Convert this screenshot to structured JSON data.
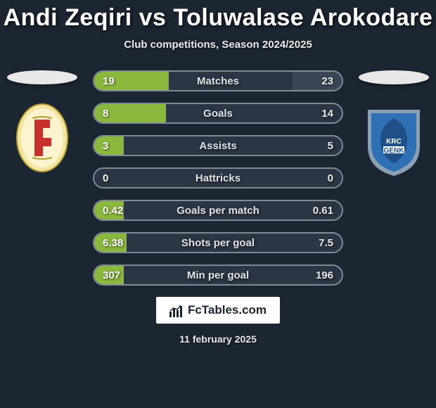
{
  "title": {
    "player1": "Andi Zeqiri",
    "vs": "vs",
    "player2": "Toluwalase Arokodare",
    "color": "#ffffff",
    "fontsize": 34
  },
  "subtitle": "Club competitions, Season 2024/2025",
  "side_badges": {
    "ellipse_color": "#e8e8e8",
    "left_crest": {
      "bg": "#f3e6a3",
      "accent": "#c9302c",
      "shape": "shield-oval"
    },
    "right_crest": {
      "bg": "#2f6fb3",
      "accent": "#ffffff",
      "text": "GENK",
      "shape": "shield"
    }
  },
  "bars": {
    "track_bg": "#2b3544",
    "border_color": "#808a96",
    "left_fill_color": "#8bb93e",
    "right_fill_color": "#3a4656",
    "label_color": "#dfe3e8",
    "rows": [
      {
        "label": "Matches",
        "left_val": "19",
        "right_val": "23",
        "left_pct": 30,
        "right_pct": 20
      },
      {
        "label": "Goals",
        "left_val": "8",
        "right_val": "14",
        "left_pct": 29,
        "right_pct": 0
      },
      {
        "label": "Assists",
        "left_val": "3",
        "right_val": "5",
        "left_pct": 12,
        "right_pct": 0
      },
      {
        "label": "Hattricks",
        "left_val": "0",
        "right_val": "0",
        "left_pct": 0,
        "right_pct": 0
      },
      {
        "label": "Goals per match",
        "left_val": "0.42",
        "right_val": "0.61",
        "left_pct": 12,
        "right_pct": 0
      },
      {
        "label": "Shots per goal",
        "left_val": "6.38",
        "right_val": "7.5",
        "left_pct": 13,
        "right_pct": 0
      },
      {
        "label": "Min per goal",
        "left_val": "307",
        "right_val": "196",
        "left_pct": 12,
        "right_pct": 0
      }
    ]
  },
  "footer": {
    "logo_text": "FcTables.com",
    "logo_bg": "#ffffff",
    "date": "11 february 2025"
  }
}
